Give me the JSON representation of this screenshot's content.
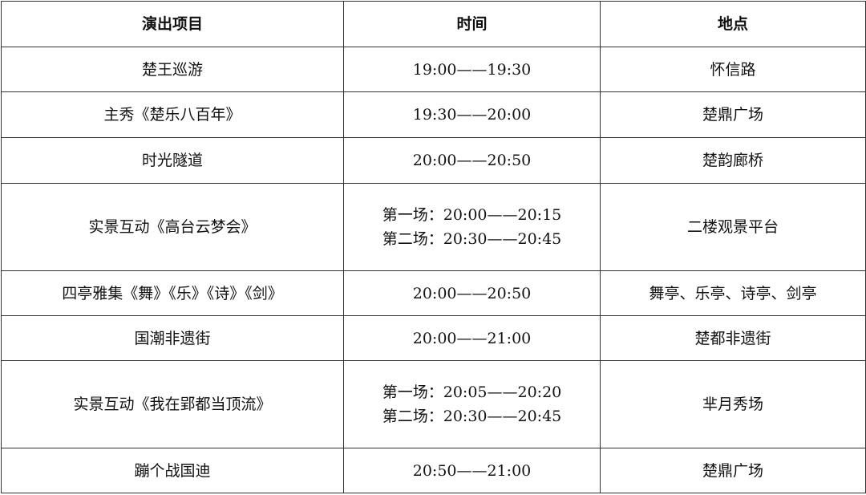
{
  "headers": [
    "演出项目",
    "时间",
    "地点"
  ],
  "rows": [
    {
      "item": "楚王巡游",
      "times": [
        "19:00——19:30"
      ],
      "place": "怀信路"
    },
    {
      "item": "主秀《楚乐八百年》",
      "times": [
        "19:30——20:00"
      ],
      "place": "楚鼎广场"
    },
    {
      "item": "时光隧道",
      "times": [
        "20:00——20:50"
      ],
      "place": "楚韵廊桥"
    },
    {
      "item": "实景互动《高台云梦会》",
      "times": [
        "第一场：20:00——20:15",
        "第二场：20:30——20:45"
      ],
      "place": "二楼观景平台"
    },
    {
      "item": "四亭雅集《舞》《乐》《诗》《剑》",
      "times": [
        "20:00——20:50"
      ],
      "place": "舞亭、乐亭、诗亭、剑亭"
    },
    {
      "item": "国潮非遗街",
      "times": [
        "20:00——21:00"
      ],
      "place": "楚都非遗街"
    },
    {
      "item": "实景互动《我在郢都当顶流》",
      "times": [
        "第一场：20:05——20:20",
        "第二场：20:30——20:45"
      ],
      "place": "芈月秀场"
    },
    {
      "item": "蹦个战国迪",
      "times": [
        "20:50——21:00"
      ],
      "place": "楚鼎广场"
    }
  ]
}
